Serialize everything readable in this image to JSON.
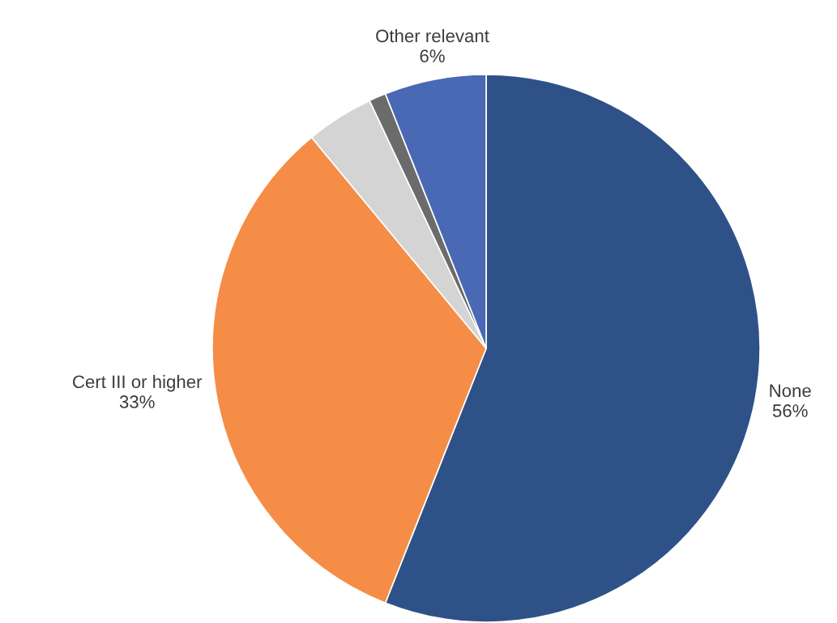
{
  "chart_data": {
    "type": "pie",
    "categories": [
      "None",
      "Cert III or higher",
      null,
      null,
      "Other relevant"
    ],
    "values": [
      56,
      33,
      4,
      1,
      6
    ],
    "value_labels": [
      "56%",
      "33%",
      null,
      null,
      "6%"
    ],
    "colors": [
      "#2e5288",
      "#f58d47",
      "#d4d4d4",
      "#6b6b6b",
      "#4a69b4"
    ]
  }
}
